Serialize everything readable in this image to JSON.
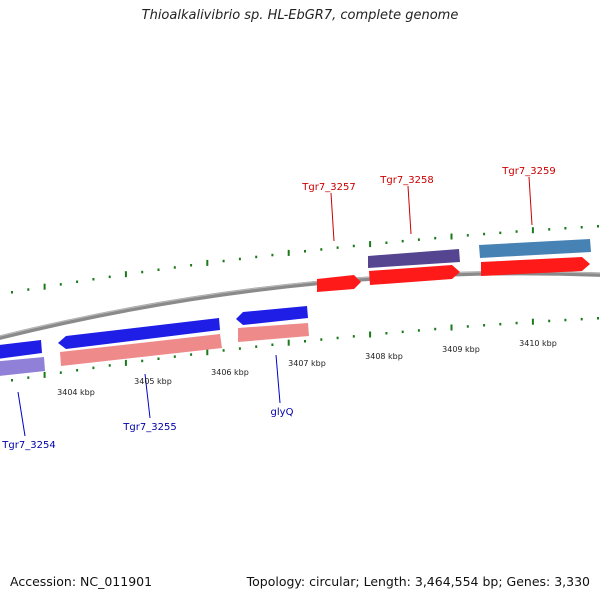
{
  "title": "Thioalkalivibrio sp. HL-EbGR7, complete genome",
  "footer": {
    "accession": "Accession: NC_011901",
    "topology": "Topology: circular; Length: 3,464,554 bp; Genes: 3,330"
  },
  "colors": {
    "backbone": "#8a8a8a",
    "forward_gene": "#ff0000",
    "forward_label": "#cc0000",
    "reverse_gene": "#0000ee",
    "reverse_label": "#0000aa",
    "forward_cds_pink": "#ee8888",
    "purple_track": "#55448f",
    "steelblue_track": "#4682b4",
    "tick": "#1a7a1a"
  },
  "scale_labels": [
    {
      "label": "3404 kbp"
    },
    {
      "label": "3405 kbp"
    },
    {
      "label": "3406 kbp"
    },
    {
      "label": "3407 kbp"
    },
    {
      "label": "3408 kbp"
    },
    {
      "label": "3409 kbp"
    },
    {
      "label": "3410 kbp"
    }
  ],
  "genes": [
    {
      "label": "Tgr7_3254",
      "strand": "reverse"
    },
    {
      "label": "Tgr7_3255",
      "strand": "reverse"
    },
    {
      "label": "glyQ",
      "strand": "reverse"
    },
    {
      "label": "Tgr7_3257",
      "strand": "forward"
    },
    {
      "label": "Tgr7_3258",
      "strand": "forward"
    },
    {
      "label": "Tgr7_3259",
      "strand": "forward"
    }
  ]
}
